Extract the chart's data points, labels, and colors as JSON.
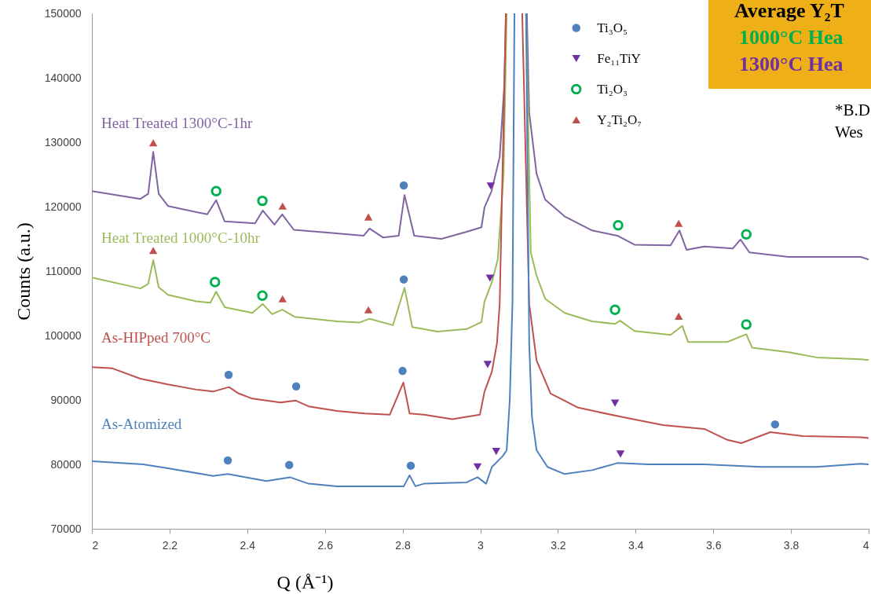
{
  "chart_data": {
    "type": "line",
    "xlabel": "Q  (Å⁻¹)",
    "ylabel": "Counts (a.u.)",
    "xlim": [
      2,
      4
    ],
    "xticks": [
      2,
      2.2,
      2.4,
      2.6,
      2.8,
      3,
      3.2,
      3.4,
      3.6,
      3.8,
      4
    ],
    "ylim": [
      70000,
      150000
    ],
    "yticks": [
      70000,
      80000,
      90000,
      100000,
      110000,
      120000,
      130000,
      140000,
      150000
    ],
    "grid": false,
    "legend": "top right",
    "annotations": [
      "Average Y₂T",
      "1000°C Hea",
      "1300°C Hea",
      "*B.D",
      "Wes"
    ],
    "series": [
      {
        "name": "Heat Treated 1300°C-1hr",
        "color": "#8064a2",
        "x": [
          2,
          2.125,
          2.145,
          2.158,
          2.172,
          2.196,
          2.297,
          2.32,
          2.342,
          2.42,
          2.44,
          2.47,
          2.49,
          2.52,
          2.6,
          2.7,
          2.715,
          2.75,
          2.79,
          2.805,
          2.83,
          2.9,
          2.965,
          3.003,
          3.011,
          3.029,
          3.05,
          3.062,
          3.066,
          3.09,
          3.12,
          3.126,
          3.145,
          3.167,
          3.217,
          3.288,
          3.353,
          3.397,
          3.49,
          3.513,
          3.531,
          3.577,
          3.65,
          3.67,
          3.693,
          3.794,
          3.98,
          4
        ],
        "values": [
          122400,
          121200,
          122000,
          128500,
          122000,
          120100,
          118800,
          121000,
          117700,
          117400,
          119400,
          117200,
          118800,
          116400,
          116000,
          115500,
          116600,
          115200,
          115500,
          121800,
          115500,
          115000,
          116100,
          116800,
          119900,
          122400,
          127700,
          139000,
          150000,
          null,
          150000,
          134600,
          125100,
          121100,
          118500,
          116300,
          115500,
          114100,
          114000,
          116300,
          113300,
          113800,
          113500,
          114900,
          112900,
          112200,
          112200,
          111800
        ]
      },
      {
        "name": "Heat Treated 1000°C-10hr",
        "color": "#9bbb59",
        "x": [
          2,
          2.125,
          2.145,
          2.158,
          2.172,
          2.196,
          2.269,
          2.305,
          2.32,
          2.342,
          2.413,
          2.44,
          2.464,
          2.49,
          2.522,
          2.631,
          2.688,
          2.715,
          2.775,
          2.805,
          2.825,
          2.89,
          2.965,
          3.003,
          3.011,
          3.03,
          3.045,
          3.06,
          3.068,
          3.09,
          3.118,
          3.13,
          3.145,
          3.167,
          3.217,
          3.288,
          3.347,
          3.36,
          3.397,
          3.49,
          3.52,
          3.535,
          3.636,
          3.685,
          3.7,
          3.794,
          3.866,
          3.98,
          4
        ],
        "values": [
          109000,
          107300,
          108000,
          111700,
          107500,
          106300,
          105300,
          105100,
          106800,
          104400,
          103500,
          104900,
          103300,
          104000,
          102900,
          102200,
          102000,
          102600,
          101600,
          107400,
          101300,
          100600,
          101000,
          102100,
          105300,
          108300,
          111800,
          125000,
          150000,
          null,
          150000,
          112900,
          109300,
          105700,
          103500,
          102200,
          101800,
          102300,
          100700,
          100100,
          101500,
          99000,
          99000,
          100200,
          98100,
          97400,
          96600,
          96300,
          96200
        ]
      },
      {
        "name": "As-HIPped 700°C",
        "color": "#c0504d",
        "x": [
          2,
          2.053,
          2.125,
          2.196,
          2.269,
          2.312,
          2.353,
          2.378,
          2.413,
          2.486,
          2.525,
          2.558,
          2.631,
          2.702,
          2.767,
          2.802,
          2.818,
          2.855,
          2.928,
          2.999,
          3.011,
          3.03,
          3.043,
          3.05,
          3.066,
          3.09,
          3.108,
          3.126,
          3.145,
          3.181,
          3.252,
          3.361,
          3.47,
          3.577,
          3.636,
          3.672,
          3.747,
          3.83,
          3.98,
          4
        ],
        "values": [
          95100,
          94900,
          93300,
          92400,
          91600,
          91300,
          92000,
          91000,
          90200,
          89600,
          89900,
          89000,
          88300,
          87900,
          87700,
          92700,
          87900,
          87700,
          87000,
          87700,
          91300,
          94400,
          98800,
          104900,
          150000,
          null,
          150000,
          104900,
          96100,
          91000,
          88800,
          87400,
          86100,
          85500,
          83800,
          83300,
          85000,
          84400,
          84200,
          84100
        ]
      },
      {
        "name": "As-Atomized",
        "color": "#4f81bd",
        "x": [
          2,
          2.132,
          2.196,
          2.312,
          2.35,
          2.449,
          2.51,
          2.558,
          2.631,
          2.803,
          2.818,
          2.833,
          2.855,
          2.965,
          2.993,
          3.015,
          3.03,
          3.058,
          3.068,
          3.076,
          3.083,
          3.088,
          3.1,
          3.118,
          3.126,
          3.133,
          3.145,
          3.173,
          3.217,
          3.288,
          3.353,
          3.434,
          3.577,
          3.723,
          3.866,
          3.98,
          4
        ],
        "values": [
          80500,
          80000,
          79400,
          78200,
          78500,
          77400,
          78000,
          77000,
          76600,
          76600,
          78300,
          76600,
          77000,
          77200,
          78000,
          77000,
          79600,
          81300,
          82200,
          90000,
          105300,
          150000,
          null,
          150000,
          98800,
          87400,
          82200,
          79600,
          78500,
          79100,
          80200,
          80000,
          80000,
          79600,
          79600,
          80100,
          80000
        ]
      },
      {
        "name": "Ti₃O₅",
        "type": "scatter",
        "marker": "circle",
        "color": "#4f81bd",
        "x": [
          2.35,
          2.508,
          2.821,
          2.352,
          2.526,
          2.8,
          2.803,
          2.803,
          3.759
        ],
        "values": [
          80600,
          79900,
          79800,
          93900,
          92100,
          94500,
          108700,
          123300,
          86200
        ]
      },
      {
        "name": "Fe₁₁TiY",
        "type": "scatter",
        "marker": "triangle-down",
        "color": "#7030a0",
        "x": [
          3.027,
          3.025,
          3.019,
          2.993,
          3.041,
          3.347,
          3.361
        ],
        "values": [
          123200,
          108900,
          95500,
          79600,
          82000,
          89500,
          81600
        ]
      },
      {
        "name": "Ti₂O₃",
        "type": "scatter",
        "marker": "circle-open",
        "color": "#00b050",
        "x": [
          2.32,
          2.439,
          2.317,
          2.439,
          3.355,
          3.685,
          3.347,
          3.685
        ],
        "values": [
          122400,
          120900,
          108300,
          106200,
          117100,
          115700,
          104000,
          101700
        ]
      },
      {
        "name": "Y₂Ti₂O₇",
        "type": "scatter",
        "marker": "triangle",
        "color": "#c0504d",
        "x": [
          2.158,
          2.491,
          2.712,
          2.158,
          2.491,
          2.712,
          3.511,
          3.511
        ],
        "values": [
          129900,
          120100,
          118400,
          113200,
          105700,
          104000,
          117400,
          103000
        ]
      }
    ]
  }
}
